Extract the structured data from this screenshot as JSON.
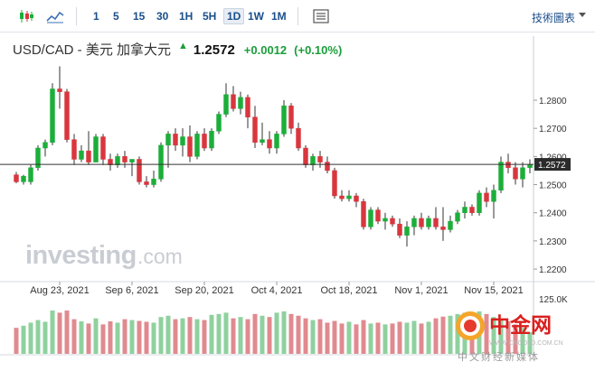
{
  "toolbar": {
    "periods": [
      "1",
      "5",
      "15",
      "30",
      "1H",
      "5H",
      "1D",
      "1W",
      "1M"
    ],
    "active_period": "1D",
    "right_label": "技術圖表"
  },
  "quote": {
    "name": "USD/CAD - 美元 加拿大元",
    "price": "1.2572",
    "change": "+0.0012",
    "change_pct": "(+0.10%)",
    "direction": "up"
  },
  "watermark": {
    "text": "investing",
    "suffix": ".com"
  },
  "colors": {
    "up": "#1cae3a",
    "down": "#d9363e",
    "vol_up": "#8fd19e",
    "vol_down": "#e08a8f",
    "link": "#1a4e8a"
  },
  "icons": [
    "candlestick-icon",
    "line-chart-icon",
    "indicator-icon"
  ],
  "overlay_logo": {
    "name": "中金网",
    "url": "WWW.CNGOLD.COM.CN",
    "tagline": "中文财经新媒体"
  },
  "chart_data": {
    "type": "candlestick",
    "instrument": "USD/CAD",
    "interval": "1D",
    "last_price": 1.2572,
    "ylim": [
      1.2165,
      1.2925
    ],
    "y_ticks": [
      1.22,
      1.23,
      1.24,
      1.25,
      1.26,
      1.27,
      1.28
    ],
    "y_tick_labels": [
      "1.2200",
      "1.2300",
      "1.2400",
      "1.2500",
      "1.2600",
      "1.2700",
      "1.2800"
    ],
    "x_tick_labels": [
      "Aug 23, 2021",
      "Sep 6, 2021",
      "Sep 20, 2021",
      "Oct 4, 2021",
      "Oct 18, 2021",
      "Nov 1, 2021",
      "Nov 15, 2021"
    ],
    "x_tick_index": [
      6,
      16,
      26,
      36,
      46,
      56,
      66
    ],
    "volume_label": "125.0K",
    "volume_max": 125000,
    "candles": [
      [
        1.2535,
        1.2545,
        1.2505,
        1.251
      ],
      [
        1.251,
        1.2535,
        1.25,
        1.253
      ],
      [
        1.251,
        1.257,
        1.25,
        1.256
      ],
      [
        1.256,
        1.264,
        1.255,
        1.263
      ],
      [
        1.263,
        1.266,
        1.26,
        1.265
      ],
      [
        1.265,
        1.286,
        1.264,
        1.284
      ],
      [
        1.284,
        1.292,
        1.277,
        1.283
      ],
      [
        1.283,
        1.284,
        1.265,
        1.266
      ],
      [
        1.266,
        1.268,
        1.257,
        1.259
      ],
      [
        1.259,
        1.264,
        1.258,
        1.262
      ],
      [
        1.262,
        1.269,
        1.257,
        1.258
      ],
      [
        1.258,
        1.268,
        1.258,
        1.267
      ],
      [
        1.267,
        1.268,
        1.257,
        1.259
      ],
      [
        1.259,
        1.261,
        1.255,
        1.257
      ],
      [
        1.257,
        1.261,
        1.256,
        1.26
      ],
      [
        1.26,
        1.262,
        1.256,
        1.258
      ],
      [
        1.258,
        1.259,
        1.253,
        1.259
      ],
      [
        1.259,
        1.26,
        1.25,
        1.251
      ],
      [
        1.251,
        1.253,
        1.249,
        1.25
      ],
      [
        1.25,
        1.255,
        1.249,
        1.252
      ],
      [
        1.252,
        1.265,
        1.251,
        1.264
      ],
      [
        1.264,
        1.269,
        1.256,
        1.268
      ],
      [
        1.268,
        1.27,
        1.262,
        1.264
      ],
      [
        1.264,
        1.27,
        1.26,
        1.267
      ],
      [
        1.267,
        1.271,
        1.258,
        1.26
      ],
      [
        1.26,
        1.269,
        1.259,
        1.268
      ],
      [
        1.268,
        1.27,
        1.262,
        1.263
      ],
      [
        1.263,
        1.27,
        1.262,
        1.269
      ],
      [
        1.269,
        1.276,
        1.268,
        1.275
      ],
      [
        1.275,
        1.286,
        1.274,
        1.282
      ],
      [
        1.282,
        1.285,
        1.276,
        1.277
      ],
      [
        1.277,
        1.283,
        1.275,
        1.281
      ],
      [
        1.281,
        1.282,
        1.27,
        1.274
      ],
      [
        1.274,
        1.278,
        1.263,
        1.265
      ],
      [
        1.265,
        1.272,
        1.264,
        1.266
      ],
      [
        1.266,
        1.269,
        1.261,
        1.263
      ],
      [
        1.263,
        1.269,
        1.261,
        1.268
      ],
      [
        1.268,
        1.28,
        1.267,
        1.278
      ],
      [
        1.278,
        1.279,
        1.268,
        1.27
      ],
      [
        1.27,
        1.272,
        1.262,
        1.263
      ],
      [
        1.263,
        1.264,
        1.256,
        1.257
      ],
      [
        1.257,
        1.261,
        1.255,
        1.26
      ],
      [
        1.26,
        1.262,
        1.256,
        1.258
      ],
      [
        1.258,
        1.26,
        1.254,
        1.255
      ],
      [
        1.255,
        1.256,
        1.245,
        1.246
      ],
      [
        1.246,
        1.248,
        1.244,
        1.245
      ],
      [
        1.245,
        1.248,
        1.244,
        1.246
      ],
      [
        1.246,
        1.247,
        1.242,
        1.244
      ],
      [
        1.244,
        1.245,
        1.234,
        1.235
      ],
      [
        1.235,
        1.242,
        1.234,
        1.241
      ],
      [
        1.241,
        1.242,
        1.236,
        1.237
      ],
      [
        1.237,
        1.24,
        1.234,
        1.238
      ],
      [
        1.238,
        1.239,
        1.235,
        1.236
      ],
      [
        1.236,
        1.238,
        1.231,
        1.232
      ],
      [
        1.232,
        1.237,
        1.228,
        1.235
      ],
      [
        1.235,
        1.239,
        1.232,
        1.238
      ],
      [
        1.238,
        1.24,
        1.234,
        1.235
      ],
      [
        1.235,
        1.239,
        1.234,
        1.238
      ],
      [
        1.238,
        1.242,
        1.234,
        1.235
      ],
      [
        1.235,
        1.242,
        1.23,
        1.234
      ],
      [
        1.234,
        1.239,
        1.233,
        1.237
      ],
      [
        1.237,
        1.241,
        1.236,
        1.24
      ],
      [
        1.24,
        1.244,
        1.238,
        1.242
      ],
      [
        1.242,
        1.243,
        1.239,
        1.24
      ],
      [
        1.24,
        1.248,
        1.239,
        1.247
      ],
      [
        1.247,
        1.249,
        1.242,
        1.244
      ],
      [
        1.244,
        1.25,
        1.238,
        1.248
      ],
      [
        1.248,
        1.26,
        1.247,
        1.258
      ],
      [
        1.258,
        1.261,
        1.254,
        1.256
      ],
      [
        1.256,
        1.258,
        1.25,
        1.252
      ],
      [
        1.252,
        1.258,
        1.249,
        1.256
      ],
      [
        1.256,
        1.259,
        1.254,
        1.2572
      ]
    ],
    "volumes": [
      60,
      65,
      72,
      78,
      74,
      100,
      95,
      100,
      80,
      75,
      70,
      82,
      68,
      75,
      72,
      80,
      78,
      76,
      74,
      72,
      85,
      88,
      80,
      82,
      85,
      80,
      78,
      90,
      92,
      95,
      82,
      85,
      80,
      92,
      88,
      85,
      95,
      98,
      92,
      88,
      82,
      78,
      80,
      72,
      76,
      70,
      74,
      68,
      78,
      70,
      72,
      68,
      70,
      74,
      72,
      76,
      70,
      74,
      82,
      86,
      88,
      92,
      95,
      90,
      98,
      92,
      85,
      80,
      75,
      68,
      60,
      50
    ]
  }
}
